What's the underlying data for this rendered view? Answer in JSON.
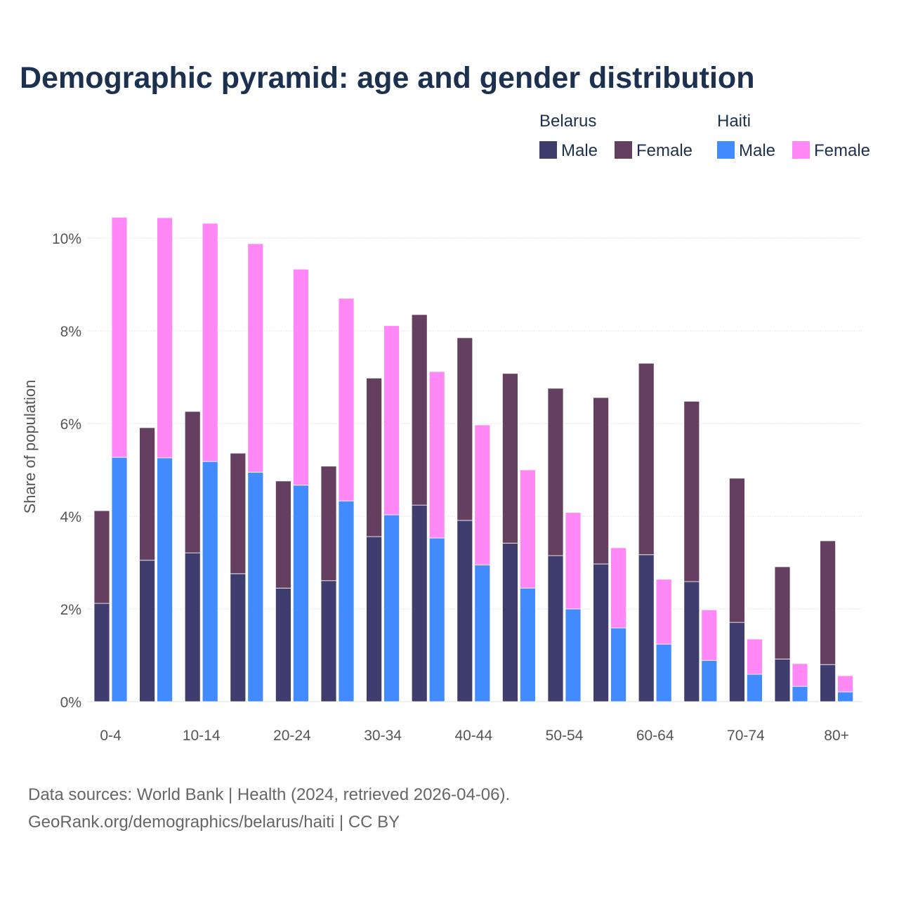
{
  "chart_data": {
    "type": "bar",
    "stacked": true,
    "title": "Demographic pyramid: age and gender distribution",
    "xlabel": "",
    "ylabel": "Share of population",
    "ylim": [
      0,
      10.5
    ],
    "yticks": [
      0,
      2,
      4,
      6,
      8,
      10
    ],
    "ytick_labels": [
      "0%",
      "2%",
      "4%",
      "6%",
      "8%",
      "10%"
    ],
    "grid": true,
    "legend_position": "top-right",
    "categories": [
      "0-4",
      "5-9",
      "10-14",
      "15-19",
      "20-24",
      "25-29",
      "30-34",
      "35-39",
      "40-44",
      "45-49",
      "50-54",
      "55-59",
      "60-64",
      "65-69",
      "70-74",
      "75-79",
      "80+"
    ],
    "xtick_labels": [
      "0-4",
      "10-14",
      "20-24",
      "30-34",
      "40-44",
      "50-54",
      "60-64",
      "70-74",
      "80+"
    ],
    "countries": [
      {
        "name": "Belarus",
        "series": [
          {
            "name": "Male",
            "color": "#3f3d6e",
            "values": [
              2.12,
              3.05,
              3.21,
              2.76,
              2.45,
              2.61,
              3.56,
              4.24,
              3.91,
              3.42,
              3.15,
              2.97,
              3.17,
              2.59,
              1.71,
              0.92,
              0.8
            ]
          },
          {
            "name": "Female",
            "color": "#653f5f",
            "values": [
              2.0,
              2.86,
              3.05,
              2.6,
              2.31,
              2.47,
              3.42,
              4.11,
              3.94,
              3.66,
              3.61,
              3.59,
              4.13,
              3.89,
              3.11,
              1.99,
              2.67
            ]
          }
        ]
      },
      {
        "name": "Haiti",
        "series": [
          {
            "name": "Male",
            "color": "#418bff",
            "values": [
              5.27,
              5.26,
              5.18,
              4.95,
              4.67,
              4.33,
              4.03,
              3.53,
              2.95,
              2.45,
              2.0,
              1.59,
              1.24,
              0.89,
              0.59,
              0.33,
              0.21
            ]
          },
          {
            "name": "Female",
            "color": "#ff88f6",
            "values": [
              5.18,
              5.18,
              5.14,
              4.93,
              4.66,
              4.37,
              4.08,
              3.59,
              3.02,
              2.55,
              2.08,
              1.73,
              1.4,
              1.09,
              0.76,
              0.49,
              0.35
            ]
          }
        ]
      }
    ]
  },
  "source": {
    "line1": "Data sources: World Bank | Health (2024, retrieved 2026-04-06).",
    "line2": "GeoRank.org/demographics/belarus/haiti | CC BY"
  }
}
